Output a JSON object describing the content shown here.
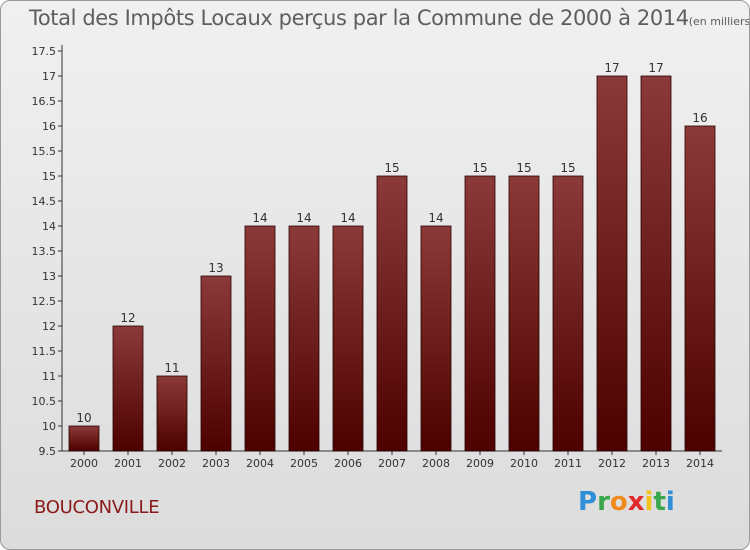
{
  "title": "Total des Impôts Locaux perçus par la Commune de 2000 à 2014",
  "unit_note": "(en milliers d'€)",
  "commune": "BOUCONVILLE",
  "logo": {
    "letters": [
      "P",
      "r",
      "o",
      "x",
      "i",
      "t",
      "i"
    ],
    "colors": [
      "#2f8fd8",
      "#3aa64a",
      "#f08a1c",
      "#e02a2a",
      "#f2c11a",
      "#3aa64a",
      "#2f8fd8"
    ]
  },
  "colors": {
    "bar_top": "#8b3a3a",
    "bar_bottom": "#4d0000",
    "title": "#5e5e5e",
    "commune": "#8b1a1a"
  },
  "chart_data": {
    "type": "bar",
    "title": "Total des Impôts Locaux perçus par la Commune de 2000 à 2014",
    "xlabel": "",
    "ylabel": "",
    "categories": [
      "2000",
      "2001",
      "2002",
      "2003",
      "2004",
      "2005",
      "2006",
      "2007",
      "2008",
      "2009",
      "2010",
      "2011",
      "2012",
      "2013",
      "2014"
    ],
    "values": [
      10,
      12,
      11,
      13,
      14,
      14,
      14,
      15,
      14,
      15,
      15,
      15,
      17,
      17,
      16
    ],
    "data_labels": [
      "10",
      "12",
      "11",
      "13",
      "14",
      "14",
      "14",
      "15",
      "14",
      "15",
      "15",
      "15",
      "17",
      "17",
      "16"
    ],
    "ylim": [
      9.5,
      17.5
    ],
    "yticks": [
      "9.5",
      "10",
      "10.5",
      "11",
      "11.5",
      "12",
      "12.5",
      "13",
      "13.5",
      "14",
      "14.5",
      "15",
      "15.5",
      "16",
      "16.5",
      "17",
      "17.5"
    ],
    "grid": false,
    "legend": "none"
  }
}
